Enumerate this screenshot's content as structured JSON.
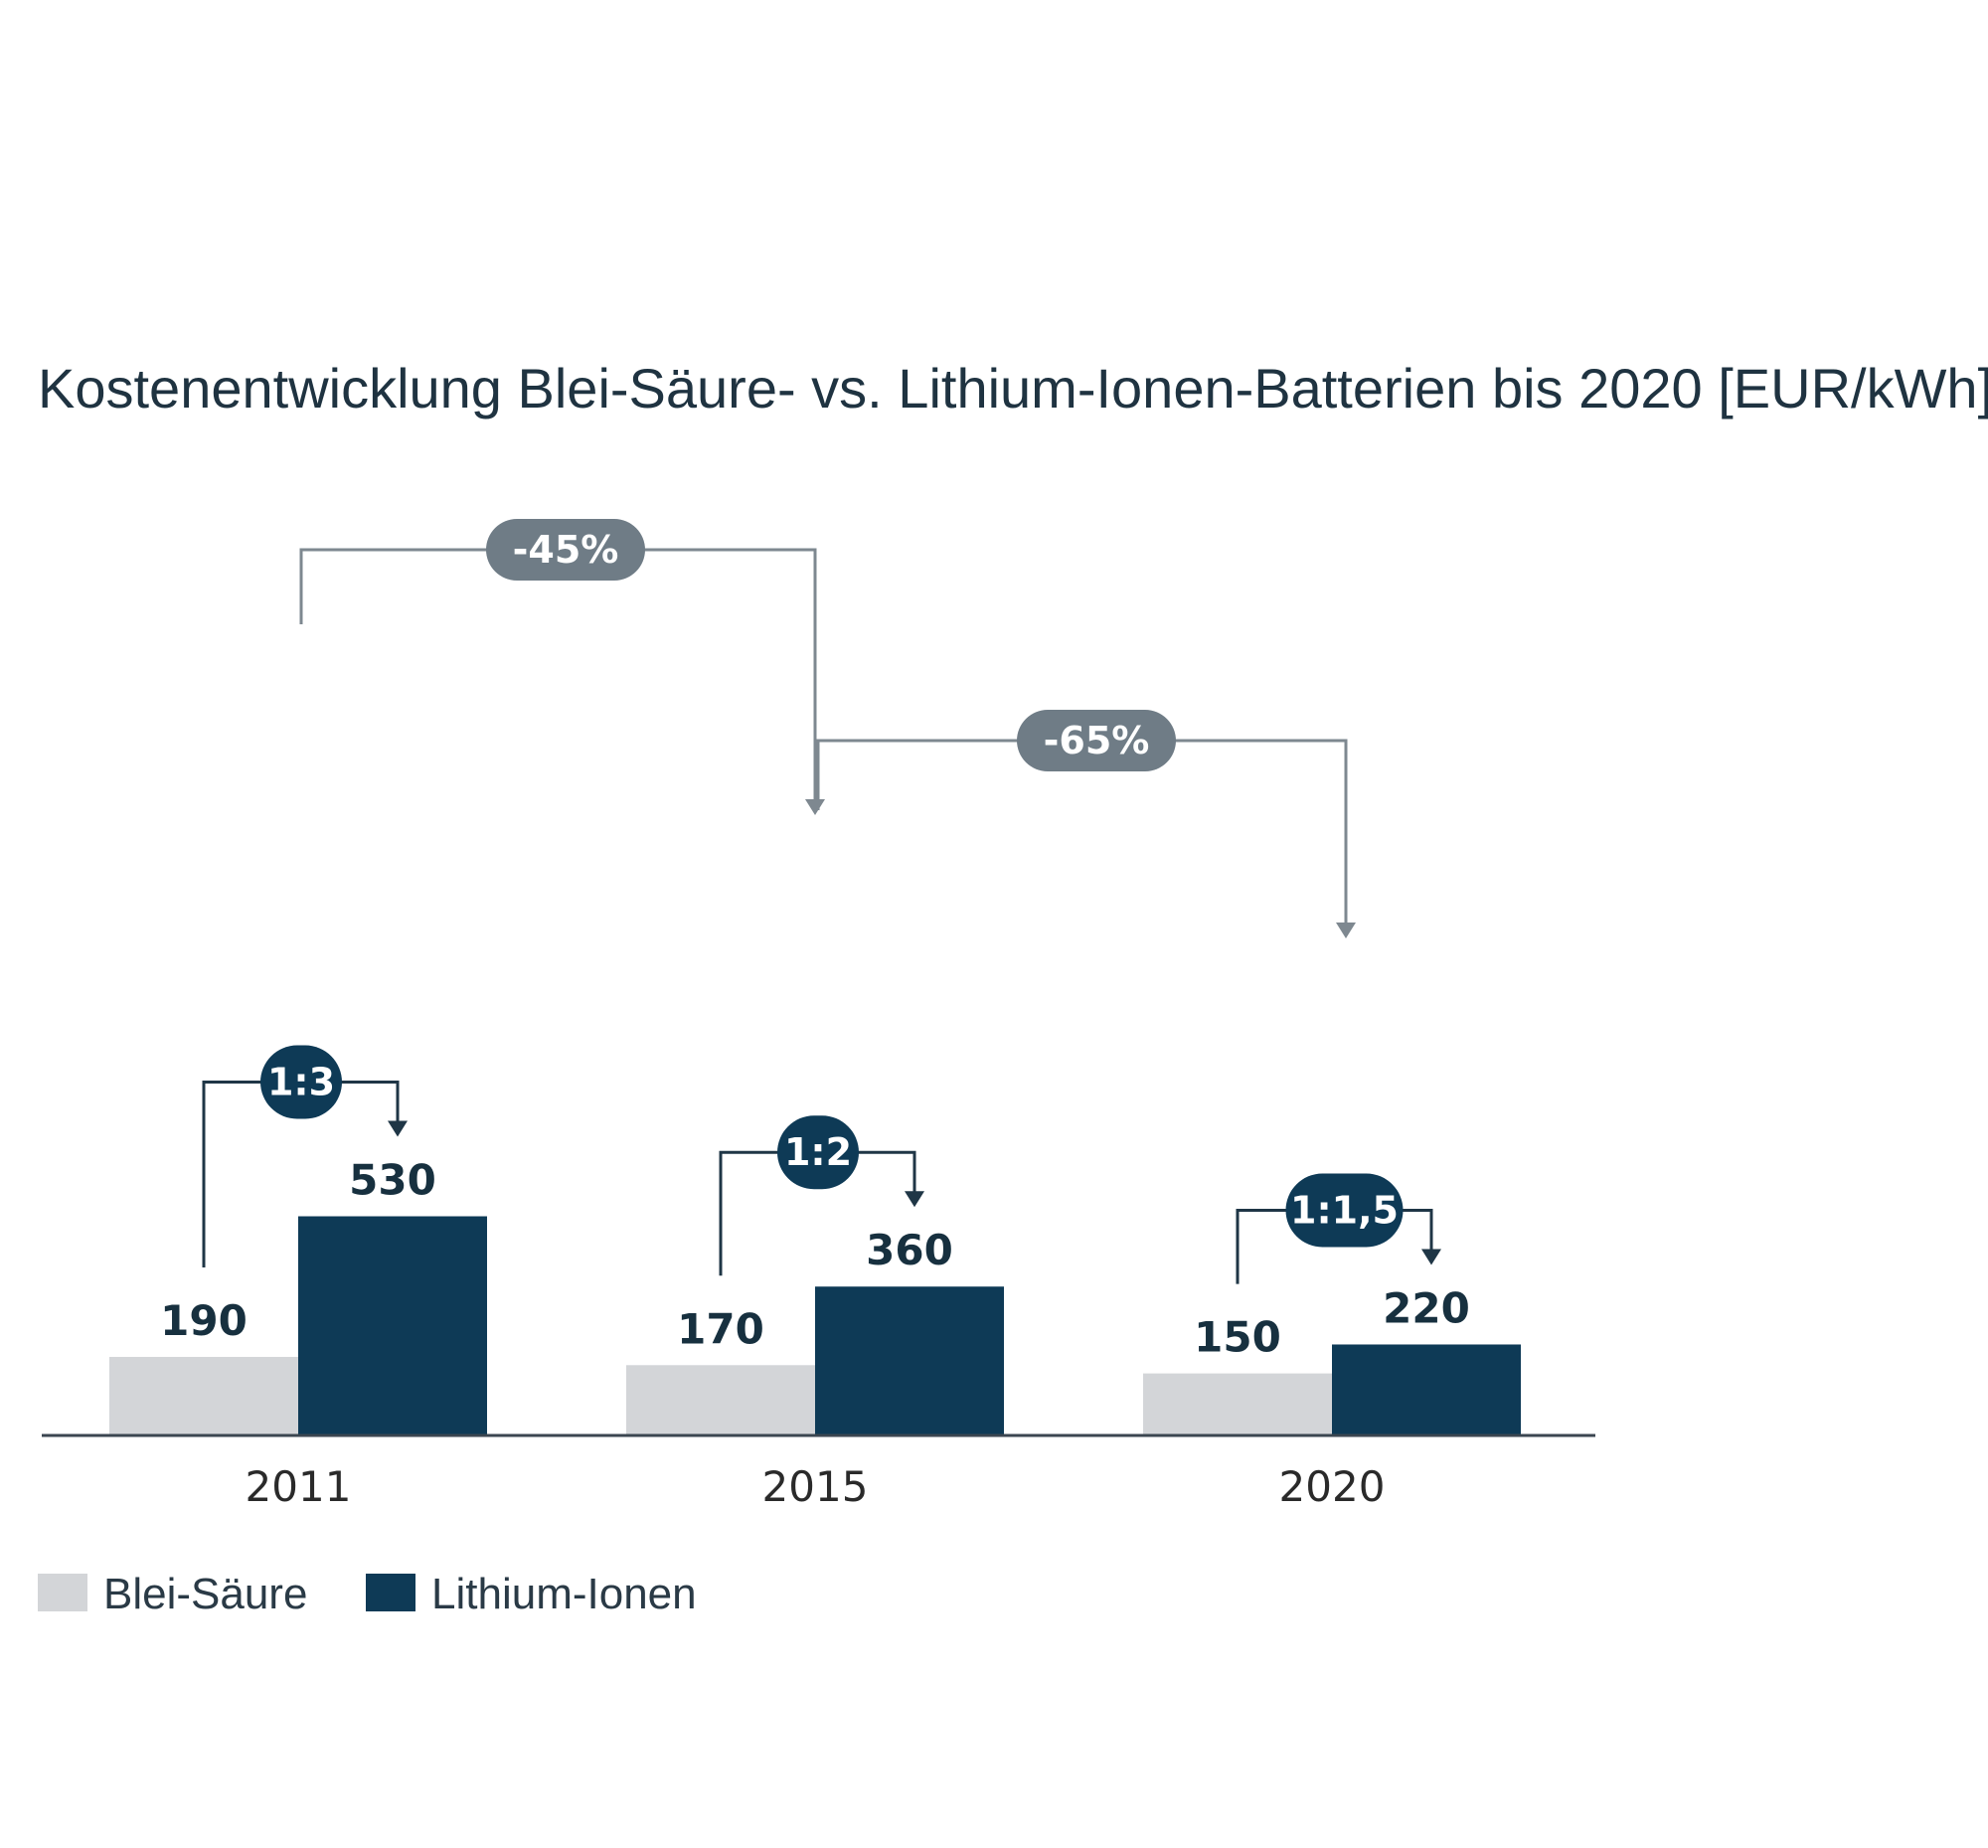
{
  "chart_data": {
    "type": "bar",
    "title": "Kostenentwicklung Blei-Säure- vs. Lithium-Ionen-Batterien bis 2020 [EUR/kWh]",
    "categories": [
      "2011",
      "2015",
      "2020"
    ],
    "series": [
      {
        "name": "Blei-Säure",
        "values": [
          190,
          170,
          150
        ],
        "color": "#d3d5d8"
      },
      {
        "name": "Lithium-Ionen",
        "values": [
          530,
          360,
          220
        ],
        "color": "#0e3a56"
      }
    ],
    "ratio_annotations": [
      "1:3",
      "1:2",
      "1:1,5"
    ],
    "change_annotations": [
      {
        "label": "-45%",
        "from": "2011",
        "to": "2015"
      },
      {
        "label": "-65%",
        "from": "2015",
        "to": "2020"
      }
    ],
    "ylim": [
      0,
      530
    ],
    "grid": false,
    "legend_position": "bottom-left"
  },
  "colors": {
    "dark_pill": "#0e3a56",
    "gray_pill": "#6f7c86",
    "dark_connector": "#1f3646",
    "gray_connector": "#7e8890",
    "axis": "#3b4650"
  }
}
